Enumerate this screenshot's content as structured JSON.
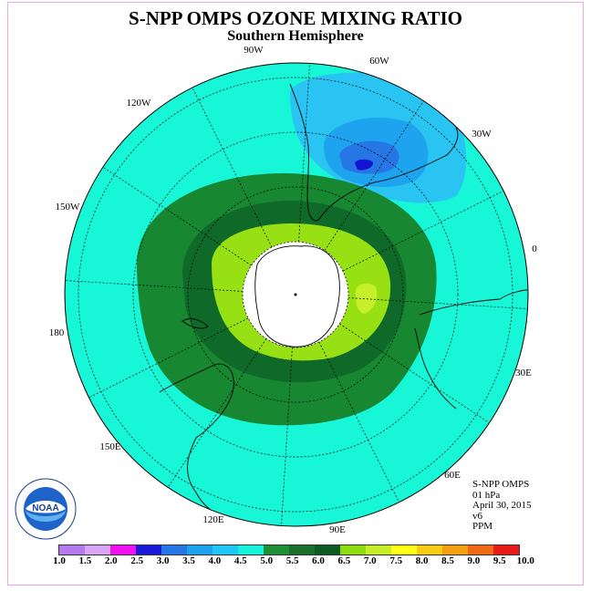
{
  "title": "S-NPP OMPS OZONE MIXING RATIO",
  "subtitle": "Southern Hemisphere",
  "longitude_labels": [
    "90W",
    "60W",
    "30W",
    "0",
    "30E",
    "60E",
    "90E",
    "120E",
    "150E",
    "180",
    "150W",
    "120W"
  ],
  "info": {
    "instrument": "S-NPP OMPS",
    "level": "01 hPa",
    "date": "April 30, 2015",
    "version": "v6",
    "units": "PPM"
  },
  "logo": {
    "text": "NOAA",
    "icon": "noaa-logo"
  },
  "colorbar": {
    "ticks": [
      "1.0",
      "1.5",
      "2.0",
      "2.5",
      "3.0",
      "3.5",
      "4.0",
      "4.5",
      "5.0",
      "5.5",
      "6.0",
      "6.5",
      "7.0",
      "7.5",
      "8.0",
      "8.5",
      "9.0",
      "9.5",
      "10.0"
    ],
    "colors": [
      "#b57aee",
      "#d9a6f5",
      "#ee11ee",
      "#1a18d8",
      "#2676e6",
      "#1ea2ee",
      "#22c6f6",
      "#18f2da",
      "#1f8f37",
      "#1b6f2c",
      "#0e5a22",
      "#8fdb12",
      "#c6ec2a",
      "#ffff1a",
      "#f7cb16",
      "#f2a012",
      "#ee6a14",
      "#e81a1a",
      "#8a5a40"
    ]
  },
  "map_colors": {
    "background_field": "#18f6d8",
    "ring_outer": "#178732",
    "ring_middle": "#0f6a2a",
    "ring_inner": "#96e014",
    "inner_highlight": "#c8f02a",
    "low_outer": "#2ac4f2",
    "low_mid": "#1ea4ee",
    "low_inner": "#2676e6",
    "low_core": "#1414d2",
    "polar_cap": "#ffffff"
  }
}
